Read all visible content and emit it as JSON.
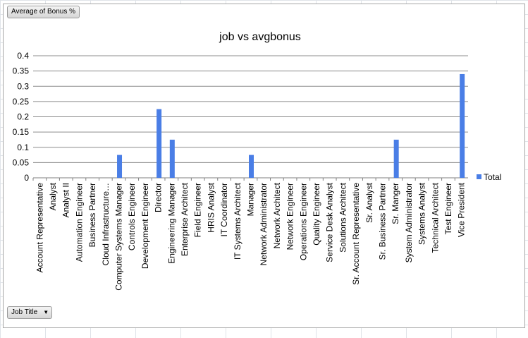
{
  "pivot_buttons": {
    "value_field": "Average of Bonus %",
    "row_field": "Job Title"
  },
  "chart_data": {
    "type": "bar",
    "title": "job vs avgbonus",
    "xlabel": "",
    "ylabel": "",
    "ylim": [
      0,
      0.4
    ],
    "yticks": [
      "0",
      "0.05",
      "0.1",
      "0.15",
      "0.2",
      "0.25",
      "0.3",
      "0.35",
      "0.4"
    ],
    "grid": true,
    "legend_position": "right",
    "categories": [
      "Account Representative",
      "Analyst",
      "Analyst II",
      "Automation Engineer",
      "Business Partner",
      "Cloud Infrastructure…",
      "Computer Systems Manager",
      "Controls Engineer",
      "Development Engineer",
      "Director",
      "Engineering Manager",
      "Enterprise Architect",
      "Field Engineer",
      "HRIS Analyst",
      "IT Coordinator",
      "IT Systems Architect",
      "Manager",
      "Network Administrator",
      "Network Architect",
      "Network Engineer",
      "Operations Engineer",
      "Quality Engineer",
      "Service Desk Analyst",
      "Solutions Architect",
      "Sr. Account Representative",
      "Sr. Analyst",
      "Sr. Business Partner",
      "Sr. Manger",
      "System Administrator",
      "Systems Analyst",
      "Technical Architect",
      "Test Engineer",
      "Vice President"
    ],
    "series": [
      {
        "name": "Total",
        "color": "#4a7ee6",
        "values": [
          0,
          0,
          0,
          0,
          0,
          0,
          0.075,
          0,
          0,
          0.225,
          0.125,
          0,
          0,
          0,
          0,
          0,
          0.075,
          0,
          0,
          0,
          0,
          0,
          0,
          0,
          0,
          0,
          0,
          0.125,
          0,
          0,
          0,
          0,
          0.34
        ]
      }
    ]
  }
}
